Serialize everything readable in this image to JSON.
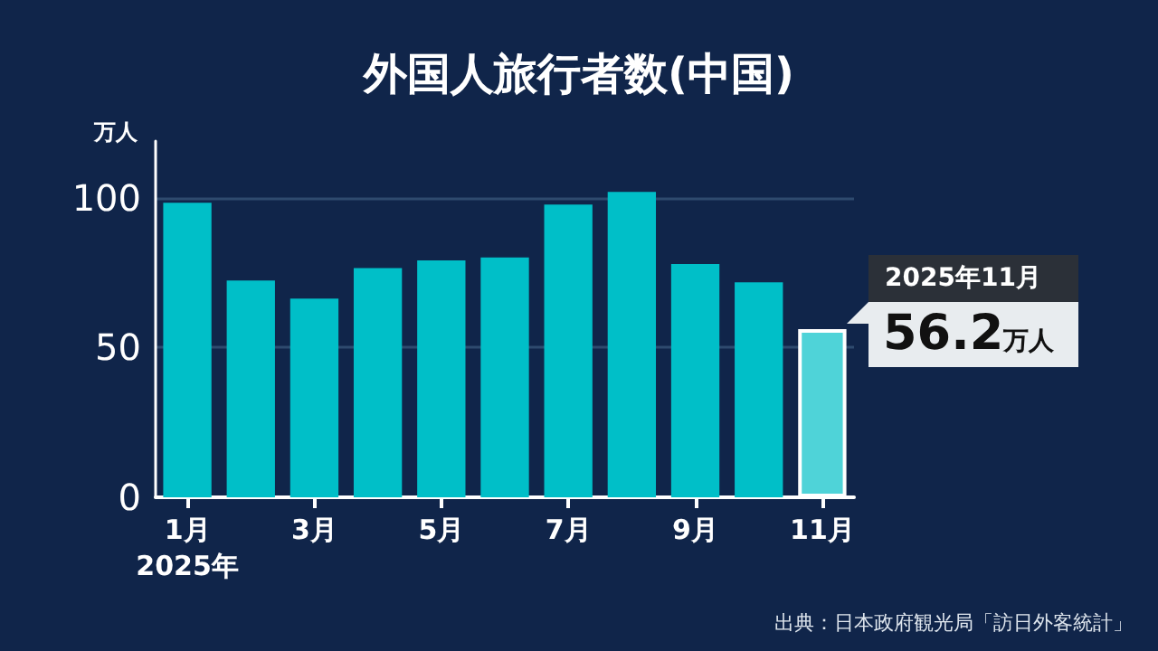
{
  "chart_data": {
    "type": "bar",
    "title": "外国人旅行者数(中国)",
    "ylabel": "万人",
    "categories": [
      "1月\n2025年",
      null,
      "3月",
      null,
      "5月",
      null,
      "7月",
      null,
      "9月",
      null,
      "11月"
    ],
    "values": [
      98.4,
      72.4,
      66.4,
      76.6,
      79.1,
      80.1,
      97.8,
      102,
      77.9,
      71.8,
      56.2
    ],
    "colors": [
      "#00bfc8",
      "#00bfc8",
      "#00bfc8",
      "#00bfc8",
      "#00bfc8",
      "#00bfc8",
      "#00bfc8",
      "#00bfc8",
      "#00bfc8",
      "#00bfc8",
      "#4fd3d8"
    ],
    "annotations": [
      "2025年11月",
      "56.2万人",
      "出典：日本政府観光局「訪日外客統計」"
    ],
    "ylim": [
      0,
      119
    ],
    "yticks": [
      0,
      50,
      100
    ],
    "grid": "y"
  }
}
